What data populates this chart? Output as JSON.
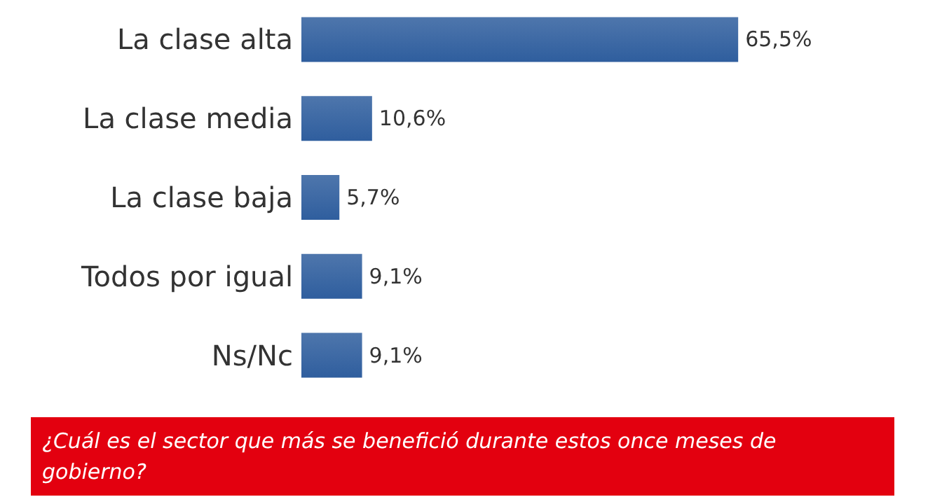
{
  "chart_data": {
    "type": "bar",
    "orientation": "horizontal",
    "title": "¿Cuál es el sector que más se benefició durante estos once meses de gobierno?",
    "categories": [
      "La clase alta",
      "La clase media",
      "La clase baja",
      "Todos por igual",
      "Ns/Nc"
    ],
    "values": [
      65.5,
      10.6,
      5.7,
      9.1,
      9.1
    ],
    "value_labels": [
      "65,5%",
      "10,6%",
      "5,7%",
      "9,1%",
      "9,1%"
    ],
    "color": "#2f5e9e"
  }
}
